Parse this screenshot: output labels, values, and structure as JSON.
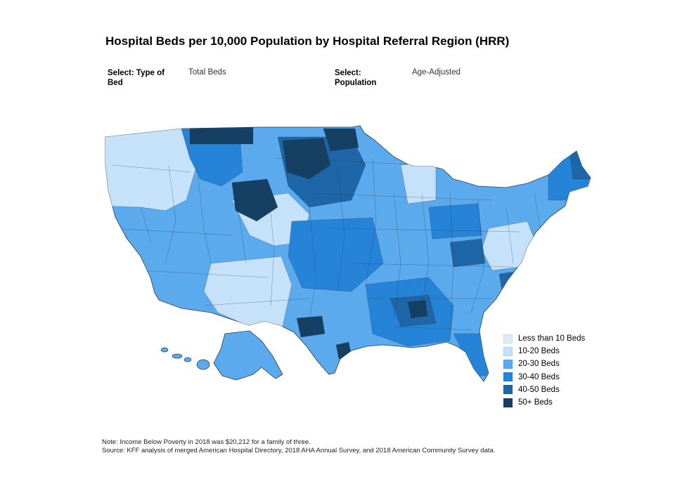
{
  "title": "Hospital Beds per 10,000 Population by Hospital Referral Region (HRR)",
  "filters": [
    {
      "label": "Select: Type of Bed",
      "value": "Total Beds"
    },
    {
      "label": "Select: Population",
      "value": "Age-Adjusted"
    }
  ],
  "legend": [
    {
      "label": "Less than 10 Beds",
      "color": "#deebf7"
    },
    {
      "label": "10-20 Beds",
      "color": "#c6e2fb"
    },
    {
      "label": "20-30 Beds",
      "color": "#5aaaed"
    },
    {
      "label": "30-40 Beds",
      "color": "#2684d8"
    },
    {
      "label": "40-50 Beds",
      "color": "#1f66a8"
    },
    {
      "label": "50+ Beds",
      "color": "#163f64"
    }
  ],
  "notes": {
    "line1": "Note: Income Below Poverty in 2018 was $20,212 for a family of three.",
    "line2": "Source: KFF analysis of merged American Hospital Directory, 2018 AHA Annual Survey, and 2018 American Community Survey data."
  },
  "map": {
    "regions": [
      {
        "name": "pacific-northwest",
        "level": 1
      },
      {
        "name": "northern-rockies",
        "level": 3
      },
      {
        "name": "upper-midwest",
        "level": 4
      },
      {
        "name": "california",
        "level": 2
      },
      {
        "name": "great-basin",
        "level": 1
      },
      {
        "name": "southwest",
        "level": 1
      },
      {
        "name": "central-plains",
        "level": 3
      },
      {
        "name": "texas",
        "level": 2
      },
      {
        "name": "southeast",
        "level": 3
      },
      {
        "name": "mid-atlantic",
        "level": 2
      },
      {
        "name": "new-england",
        "level": 3
      },
      {
        "name": "great-lakes",
        "level": 2
      },
      {
        "name": "alaska",
        "level": 2
      },
      {
        "name": "hawaii",
        "level": 2
      }
    ]
  }
}
